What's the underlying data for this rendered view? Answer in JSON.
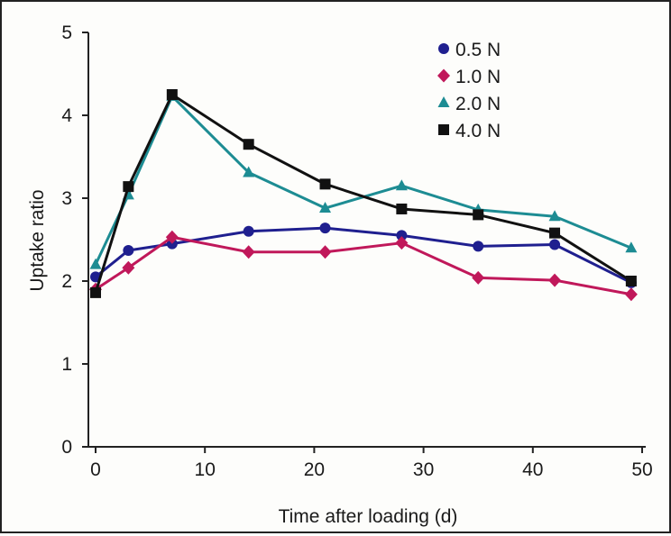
{
  "chart_data": {
    "type": "line",
    "title": "",
    "xlabel": "Time after loading (d)",
    "ylabel": "Uptake ratio",
    "xlim": [
      0,
      50
    ],
    "ylim": [
      0,
      5
    ],
    "xticks": [
      0,
      10,
      20,
      30,
      40,
      50
    ],
    "yticks": [
      0,
      1,
      2,
      3,
      4,
      5
    ],
    "grid": false,
    "legend_position": "top-right",
    "x": [
      0,
      3,
      7,
      14,
      21,
      28,
      35,
      42,
      49
    ],
    "series": [
      {
        "name": "0.5 N",
        "color": "#1f1f8f",
        "marker": "circle",
        "values": [
          2.05,
          2.37,
          2.45,
          2.6,
          2.64,
          2.55,
          2.42,
          2.44,
          1.98
        ]
      },
      {
        "name": "1.0 N",
        "color": "#c0185a",
        "marker": "diamond",
        "values": [
          1.9,
          2.16,
          2.53,
          2.35,
          2.35,
          2.46,
          2.04,
          2.01,
          1.84
        ]
      },
      {
        "name": "2.0 N",
        "color": "#1d8c93",
        "marker": "triangle",
        "values": [
          2.2,
          3.04,
          4.23,
          3.31,
          2.88,
          3.15,
          2.86,
          2.78,
          2.4
        ]
      },
      {
        "name": "4.0 N",
        "color": "#111111",
        "marker": "square",
        "values": [
          1.86,
          3.14,
          4.25,
          3.65,
          3.17,
          2.87,
          2.8,
          2.58,
          2.0
        ]
      }
    ]
  }
}
